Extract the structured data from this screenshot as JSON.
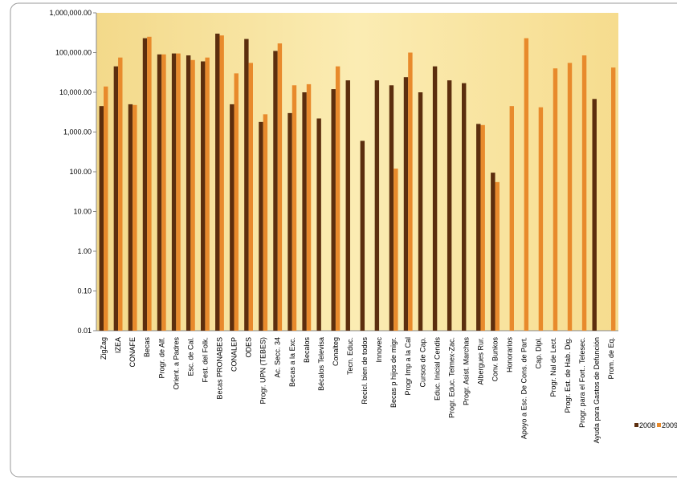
{
  "chart_data": {
    "type": "bar",
    "log_scale": true,
    "legend": "right",
    "categories": [
      "ZigZag",
      "IZEA",
      "CONAFE",
      "Becas",
      "Progr. de Alf.",
      "Orient. a Padres",
      "Esc. de Cal.",
      "Fest. del Folk.",
      "Becas PRONABES",
      "CONALEP",
      "ODES",
      "Progr. UPN (TEBES)",
      "Ac. Secc. 34",
      "Becas a la Exc.",
      "Becalos",
      "Bécalos Televisa",
      "Conalteg",
      "Tecn. Educ.",
      "Recicl. bien de todos",
      "Innovec",
      "Becas p hijos de migr.",
      "Progr Imp a la Cal",
      "Cursos de Cap.",
      "Educ. Inicial Cendis",
      "Progr. Educ. Telmex-Zac.",
      "Progr. Asist. Marchas",
      "Albergues Rur.",
      "Conv. Bunkos",
      "Honorarios",
      "Apoyo a Esc. De Cons. de Part.",
      "Cap. Dipl.",
      "Progr. Nal de Lect.",
      "Progr. Est. de Hab. Dig.",
      "Progr. para el Fort.. Telesec.",
      "Ayuda para Gastos de Defunción",
      "Prom. de Eq."
    ],
    "series": [
      {
        "name": "2008",
        "color": "#5c2e0e",
        "values": [
          4500,
          45000,
          5000,
          230000,
          90000,
          95000,
          85000,
          60000,
          300000,
          5000,
          220000,
          1800,
          110000,
          3000,
          10000,
          2200,
          12000,
          20000,
          600,
          20000,
          15000,
          24000,
          10000,
          45000,
          20000,
          17000,
          1600,
          95,
          null,
          null,
          null,
          null,
          null,
          null,
          6800,
          null
        ]
      },
      {
        "name": "2009",
        "color": "#e88a2c",
        "values": [
          14000,
          75000,
          4800,
          250000,
          90000,
          95000,
          65000,
          75000,
          270000,
          30000,
          55000,
          2800,
          170000,
          15000,
          16000,
          null,
          45000,
          null,
          null,
          null,
          120,
          100000,
          null,
          null,
          null,
          null,
          1500,
          55,
          4500,
          230000,
          4200,
          40000,
          55000,
          85000,
          null,
          42000
        ]
      }
    ],
    "ylim": [
      0.01,
      1000000
    ],
    "yticks": [
      {
        "value": 0.01,
        "label": "0.01"
      },
      {
        "value": 0.1,
        "label": "0.10"
      },
      {
        "value": 1,
        "label": "1.00"
      },
      {
        "value": 10,
        "label": "10.00"
      },
      {
        "value": 100,
        "label": "100.00"
      },
      {
        "value": 1000,
        "label": "1,000.00"
      },
      {
        "value": 10000,
        "label": "10,000.00"
      },
      {
        "value": 100000,
        "label": "100,000.00"
      },
      {
        "value": 1000000,
        "label": "1,000,000.00"
      }
    ]
  }
}
